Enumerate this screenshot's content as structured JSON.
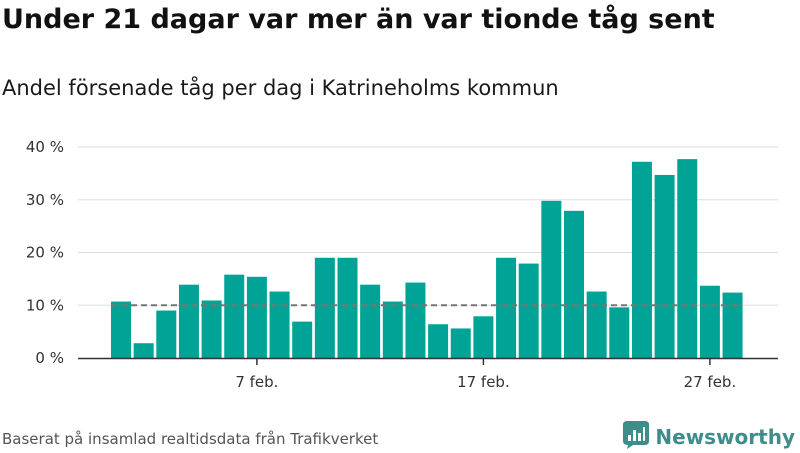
{
  "title": "Under 21 dagar var mer än var tionde tåg sent",
  "subtitle": "Andel försenade tåg per dag i Katrineholms kommun",
  "source": "Baserat på insamlad realtidsdata från Trafikverket",
  "brand": {
    "name": "Newsworthy",
    "icon": "newsworthy-logo-icon",
    "color": "#3d8d8a"
  },
  "chart_data": {
    "type": "bar",
    "categories": [
      "1 feb.",
      "2 feb.",
      "3 feb.",
      "4 feb.",
      "5 feb.",
      "6 feb.",
      "7 feb.",
      "8 feb.",
      "9 feb.",
      "10 feb.",
      "11 feb.",
      "12 feb.",
      "13 feb.",
      "14 feb.",
      "15 feb.",
      "16 feb.",
      "17 feb.",
      "18 feb.",
      "19 feb.",
      "20 feb.",
      "21 feb.",
      "22 feb.",
      "23 feb.",
      "24 feb.",
      "25 feb.",
      "26 feb.",
      "27 feb.",
      "28 feb."
    ],
    "values": [
      10.7,
      2.8,
      9.0,
      13.9,
      10.9,
      15.8,
      15.4,
      12.6,
      6.9,
      19.0,
      19.0,
      13.9,
      10.7,
      14.3,
      6.4,
      5.6,
      7.9,
      19.0,
      17.9,
      29.8,
      27.9,
      12.6,
      9.6,
      37.2,
      34.7,
      37.7,
      13.7,
      12.4
    ],
    "reference_line": 10,
    "x_ticks": [
      {
        "index": 6,
        "label": "7 feb."
      },
      {
        "index": 16,
        "label": "17 feb."
      },
      {
        "index": 26,
        "label": "27 feb."
      }
    ],
    "y_ticks": [
      {
        "value": 0,
        "label": "0 %"
      },
      {
        "value": 10,
        "label": "10 %"
      },
      {
        "value": 20,
        "label": "20 %"
      },
      {
        "value": 30,
        "label": "30 %"
      },
      {
        "value": 40,
        "label": "40 %"
      }
    ],
    "ylim": [
      0,
      40
    ],
    "grid": true,
    "bar_color": "#00a396",
    "reference_color": "#777777"
  }
}
